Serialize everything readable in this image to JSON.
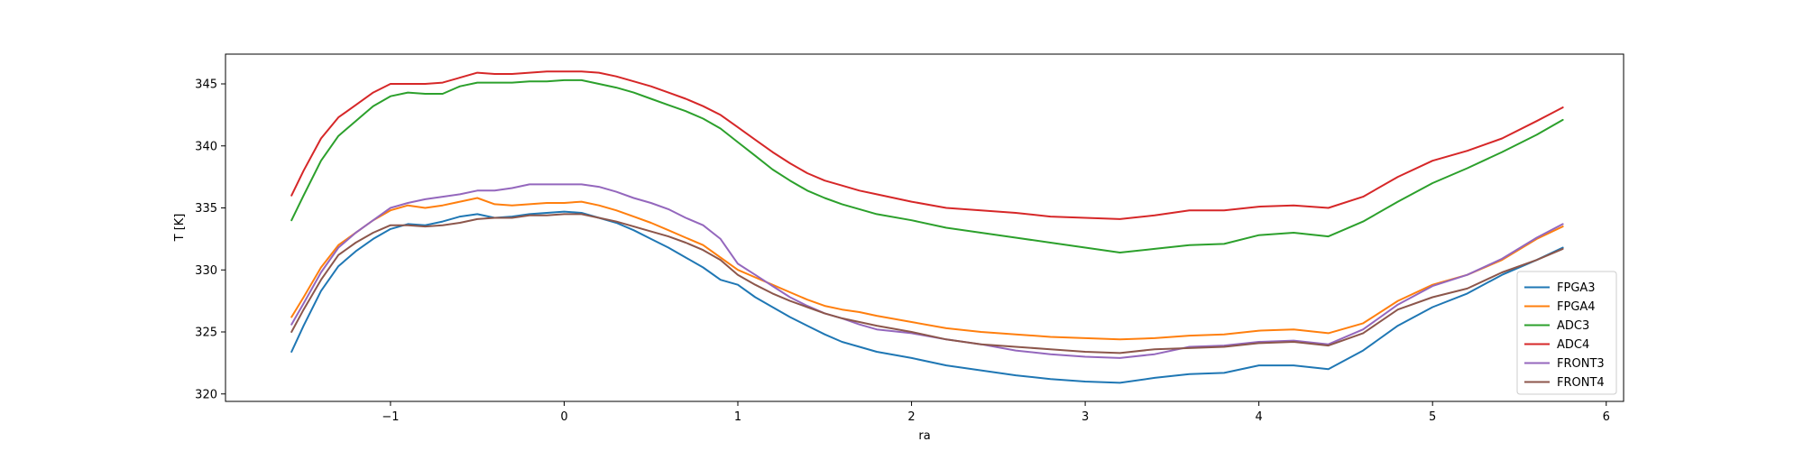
{
  "chart_data": {
    "type": "line",
    "title": "",
    "xlabel": "ra",
    "ylabel": "T [K]",
    "xlim": [
      -1.95,
      6.1
    ],
    "ylim": [
      319.4,
      347.4
    ],
    "xticks": [
      -1,
      0,
      1,
      2,
      3,
      4,
      5,
      6
    ],
    "yticks": [
      320,
      325,
      330,
      335,
      340,
      345
    ],
    "grid": false,
    "legend_position": "lower-right",
    "series": [
      {
        "name": "FPGA3",
        "color": "#1f77b4",
        "x": [
          -1.57,
          -1.5,
          -1.4,
          -1.3,
          -1.2,
          -1.1,
          -1.0,
          -0.9,
          -0.8,
          -0.7,
          -0.6,
          -0.5,
          -0.4,
          -0.3,
          -0.2,
          -0.1,
          0.0,
          0.1,
          0.2,
          0.3,
          0.4,
          0.5,
          0.6,
          0.7,
          0.8,
          0.9,
          1.0,
          1.1,
          1.2,
          1.3,
          1.4,
          1.5,
          1.6,
          1.7,
          1.8,
          2.0,
          2.2,
          2.4,
          2.6,
          2.8,
          3.0,
          3.2,
          3.4,
          3.6,
          3.8,
          4.0,
          4.2,
          4.4,
          4.6,
          4.8,
          5.0,
          5.2,
          5.4,
          5.6,
          5.75
        ],
        "y": [
          323.4,
          325.5,
          328.3,
          330.3,
          331.5,
          332.5,
          333.3,
          333.7,
          333.6,
          333.9,
          334.3,
          334.5,
          334.2,
          334.3,
          334.5,
          334.6,
          334.7,
          334.6,
          334.2,
          333.8,
          333.2,
          332.5,
          331.8,
          331.0,
          330.2,
          329.2,
          328.8,
          327.8,
          327.0,
          326.2,
          325.5,
          324.8,
          324.2,
          323.8,
          323.4,
          322.9,
          322.3,
          321.9,
          321.5,
          321.2,
          321.0,
          320.9,
          321.3,
          321.6,
          321.7,
          322.3,
          322.3,
          322.0,
          323.5,
          325.5,
          327.0,
          328.1,
          329.6,
          330.8,
          331.8
        ]
      },
      {
        "name": "FPGA4",
        "color": "#ff7f0e",
        "x": [
          -1.57,
          -1.5,
          -1.4,
          -1.3,
          -1.2,
          -1.1,
          -1.0,
          -0.9,
          -0.8,
          -0.7,
          -0.6,
          -0.5,
          -0.4,
          -0.3,
          -0.2,
          -0.1,
          0.0,
          0.1,
          0.2,
          0.3,
          0.4,
          0.5,
          0.6,
          0.7,
          0.8,
          0.9,
          1.0,
          1.1,
          1.2,
          1.3,
          1.4,
          1.5,
          1.6,
          1.7,
          1.8,
          2.0,
          2.2,
          2.4,
          2.6,
          2.8,
          3.0,
          3.2,
          3.4,
          3.6,
          3.8,
          4.0,
          4.2,
          4.4,
          4.6,
          4.8,
          5.0,
          5.2,
          5.4,
          5.6,
          5.75
        ],
        "y": [
          326.2,
          327.8,
          330.2,
          332.0,
          333.0,
          334.0,
          334.8,
          335.2,
          335.0,
          335.2,
          335.5,
          335.8,
          335.3,
          335.2,
          335.3,
          335.4,
          335.4,
          335.5,
          335.2,
          334.8,
          334.3,
          333.8,
          333.2,
          332.6,
          332.0,
          331.0,
          330.0,
          329.4,
          328.8,
          328.2,
          327.6,
          327.1,
          326.8,
          326.6,
          326.3,
          325.8,
          325.3,
          325.0,
          324.8,
          324.6,
          324.5,
          324.4,
          324.5,
          324.7,
          324.8,
          325.1,
          325.2,
          324.9,
          325.7,
          327.5,
          328.8,
          329.6,
          330.8,
          332.5,
          333.5
        ]
      },
      {
        "name": "ADC3",
        "color": "#2ca02c",
        "x": [
          -1.57,
          -1.5,
          -1.4,
          -1.3,
          -1.2,
          -1.1,
          -1.0,
          -0.9,
          -0.8,
          -0.7,
          -0.6,
          -0.5,
          -0.4,
          -0.3,
          -0.2,
          -0.1,
          0.0,
          0.1,
          0.2,
          0.3,
          0.4,
          0.5,
          0.6,
          0.7,
          0.8,
          0.9,
          1.0,
          1.1,
          1.2,
          1.3,
          1.4,
          1.5,
          1.6,
          1.7,
          1.8,
          2.0,
          2.2,
          2.4,
          2.6,
          2.8,
          3.0,
          3.2,
          3.4,
          3.6,
          3.8,
          4.0,
          4.2,
          4.4,
          4.6,
          4.8,
          5.0,
          5.2,
          5.4,
          5.6,
          5.75
        ],
        "y": [
          334.0,
          336.0,
          338.8,
          340.8,
          342.0,
          343.2,
          344.0,
          344.3,
          344.2,
          344.2,
          344.8,
          345.1,
          345.1,
          345.1,
          345.2,
          345.2,
          345.3,
          345.3,
          345.0,
          344.7,
          344.3,
          343.8,
          343.3,
          342.8,
          342.2,
          341.4,
          340.3,
          339.2,
          338.1,
          337.2,
          336.4,
          335.8,
          335.3,
          334.9,
          334.5,
          334.0,
          333.4,
          333.0,
          332.6,
          332.2,
          331.8,
          331.4,
          331.7,
          332.0,
          332.1,
          332.8,
          333.0,
          332.7,
          333.9,
          335.5,
          337.0,
          338.2,
          339.5,
          340.9,
          342.1
        ]
      },
      {
        "name": "ADC4",
        "color": "#d62728",
        "x": [
          -1.57,
          -1.5,
          -1.4,
          -1.3,
          -1.2,
          -1.1,
          -1.0,
          -0.9,
          -0.8,
          -0.7,
          -0.6,
          -0.5,
          -0.4,
          -0.3,
          -0.2,
          -0.1,
          0.0,
          0.1,
          0.2,
          0.3,
          0.4,
          0.5,
          0.6,
          0.7,
          0.8,
          0.9,
          1.0,
          1.1,
          1.2,
          1.3,
          1.4,
          1.5,
          1.6,
          1.7,
          1.8,
          2.0,
          2.2,
          2.4,
          2.6,
          2.8,
          3.0,
          3.2,
          3.4,
          3.6,
          3.8,
          4.0,
          4.2,
          4.4,
          4.6,
          4.8,
          5.0,
          5.2,
          5.4,
          5.6,
          5.75
        ],
        "y": [
          336.0,
          338.0,
          340.6,
          342.3,
          343.3,
          344.3,
          345.0,
          345.0,
          345.0,
          345.1,
          345.5,
          345.9,
          345.8,
          345.8,
          345.9,
          346.0,
          346.0,
          346.0,
          345.9,
          345.6,
          345.2,
          344.8,
          344.3,
          343.8,
          343.2,
          342.5,
          341.5,
          340.5,
          339.5,
          338.6,
          337.8,
          337.2,
          336.8,
          336.4,
          336.1,
          335.5,
          335.0,
          334.8,
          334.6,
          334.3,
          334.2,
          334.1,
          334.4,
          334.8,
          334.8,
          335.1,
          335.2,
          335.0,
          335.9,
          337.5,
          338.8,
          339.6,
          340.6,
          342.0,
          343.1
        ]
      },
      {
        "name": "FRONT3",
        "color": "#9467bd",
        "x": [
          -1.57,
          -1.5,
          -1.4,
          -1.3,
          -1.2,
          -1.1,
          -1.0,
          -0.9,
          -0.8,
          -0.7,
          -0.6,
          -0.5,
          -0.4,
          -0.3,
          -0.2,
          -0.1,
          0.0,
          0.1,
          0.2,
          0.3,
          0.4,
          0.5,
          0.6,
          0.7,
          0.8,
          0.9,
          1.0,
          1.1,
          1.2,
          1.3,
          1.4,
          1.5,
          1.6,
          1.7,
          1.8,
          2.0,
          2.2,
          2.4,
          2.6,
          2.8,
          3.0,
          3.2,
          3.4,
          3.6,
          3.8,
          4.0,
          4.2,
          4.4,
          4.6,
          4.8,
          5.0,
          5.2,
          5.4,
          5.6,
          5.75
        ],
        "y": [
          325.6,
          327.3,
          329.8,
          331.8,
          333.0,
          334.0,
          335.0,
          335.4,
          335.7,
          335.9,
          336.1,
          336.4,
          336.4,
          336.6,
          336.9,
          336.9,
          336.9,
          336.9,
          336.7,
          336.3,
          335.8,
          335.4,
          334.9,
          334.2,
          333.6,
          332.5,
          330.5,
          329.6,
          328.7,
          327.8,
          327.1,
          326.5,
          326.1,
          325.6,
          325.2,
          324.9,
          324.4,
          324.0,
          323.5,
          323.2,
          323.0,
          322.9,
          323.2,
          323.8,
          323.9,
          324.2,
          324.3,
          324.0,
          325.2,
          327.2,
          328.7,
          329.6,
          330.9,
          332.6,
          333.7
        ]
      },
      {
        "name": "FRONT4",
        "color": "#8c564b",
        "x": [
          -1.57,
          -1.5,
          -1.4,
          -1.3,
          -1.2,
          -1.1,
          -1.0,
          -0.9,
          -0.8,
          -0.7,
          -0.6,
          -0.5,
          -0.4,
          -0.3,
          -0.2,
          -0.1,
          0.0,
          0.1,
          0.2,
          0.3,
          0.4,
          0.5,
          0.6,
          0.7,
          0.8,
          0.9,
          1.0,
          1.1,
          1.2,
          1.3,
          1.4,
          1.5,
          1.6,
          1.7,
          1.8,
          2.0,
          2.2,
          2.4,
          2.6,
          2.8,
          3.0,
          3.2,
          3.4,
          3.6,
          3.8,
          4.0,
          4.2,
          4.4,
          4.6,
          4.8,
          5.0,
          5.2,
          5.4,
          5.6,
          5.75
        ],
        "y": [
          325.0,
          326.8,
          329.2,
          331.2,
          332.2,
          333.0,
          333.6,
          333.6,
          333.5,
          333.6,
          333.8,
          334.1,
          334.2,
          334.2,
          334.4,
          334.4,
          334.5,
          334.5,
          334.2,
          333.9,
          333.5,
          333.1,
          332.7,
          332.2,
          331.6,
          330.8,
          329.6,
          328.8,
          328.1,
          327.5,
          327.0,
          326.5,
          326.1,
          325.8,
          325.5,
          325.0,
          324.4,
          324.0,
          323.8,
          323.6,
          323.4,
          323.3,
          323.6,
          323.7,
          323.8,
          324.1,
          324.2,
          323.9,
          324.9,
          326.8,
          327.8,
          328.5,
          329.8,
          330.8,
          331.7
        ]
      }
    ]
  }
}
